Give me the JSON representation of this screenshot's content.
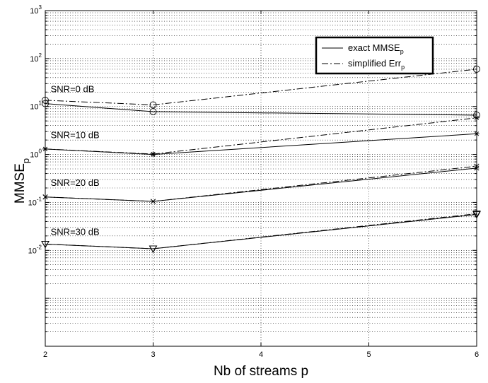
{
  "chart_data": {
    "type": "line",
    "x": [
      2,
      3,
      6
    ],
    "xlabel": "Nb of streams p",
    "ylabel_main": "MMSE",
    "ylabel_sub": "p",
    "xlim": [
      2,
      6
    ],
    "ylim": [
      0.0001,
      1000
    ],
    "yscale": "log",
    "x_ticks": [
      "2",
      "3",
      "4",
      "5",
      "6"
    ],
    "y_ticks": [
      {
        "base": "10",
        "exp": "3",
        "value": 1000
      },
      {
        "base": "10",
        "exp": "2",
        "value": 100
      },
      {
        "base": "10",
        "exp": "1",
        "value": 10
      },
      {
        "base": "10",
        "exp": "0",
        "value": 1
      },
      {
        "base": "10",
        "exp": "-1",
        "value": 0.1
      },
      {
        "base": "10",
        "exp": "-2",
        "value": 0.01
      }
    ],
    "grid": true,
    "legend": {
      "position": "top-right",
      "entries": [
        {
          "main": "exact MMSE",
          "sub": "p",
          "style": "solid"
        },
        {
          "main": "simplified Err",
          "sub": "p",
          "style": "dashdot"
        }
      ]
    },
    "annotations": [
      {
        "text": "SNR=0 dB",
        "x": 2.05,
        "y": 20
      },
      {
        "text": "SNR=10 dB",
        "x": 2.05,
        "y": 2.2
      },
      {
        "text": "SNR=20 dB",
        "x": 2.05,
        "y": 0.22
      },
      {
        "text": "SNR=30 dB",
        "x": 2.05,
        "y": 0.021
      }
    ],
    "series": [
      {
        "group": "SNR=0 dB",
        "kind": "exact",
        "values": [
          11.5,
          7.8,
          6.6
        ],
        "marker": "circle",
        "marker_idx": [
          0,
          1,
          2
        ]
      },
      {
        "group": "SNR=0 dB",
        "kind": "simplified",
        "values": [
          13.5,
          10.8,
          60
        ],
        "marker": "circle",
        "marker_idx": [
          0,
          1,
          2
        ]
      },
      {
        "group": "SNR=10 dB",
        "kind": "exact",
        "values": [
          1.3,
          1.0,
          2.7
        ],
        "marker": "star",
        "marker_idx": [
          0,
          1,
          2
        ]
      },
      {
        "group": "SNR=10 dB",
        "kind": "simplified",
        "values": [
          1.3,
          1.02,
          5.8
        ],
        "marker": "star",
        "marker_idx": [
          0,
          1,
          2
        ]
      },
      {
        "group": "SNR=20 dB",
        "kind": "exact",
        "values": [
          0.13,
          0.105,
          0.52
        ],
        "marker": "x",
        "marker_idx": [
          0,
          1,
          2
        ]
      },
      {
        "group": "SNR=20 dB",
        "kind": "simplified",
        "values": [
          0.13,
          0.105,
          0.57
        ],
        "marker": "x",
        "marker_idx": [
          0,
          1,
          2
        ]
      },
      {
        "group": "SNR=30 dB",
        "kind": "exact",
        "values": [
          0.0135,
          0.0108,
          0.056
        ],
        "marker": "triangle",
        "marker_idx": [
          0,
          1,
          2
        ]
      },
      {
        "group": "SNR=30 dB",
        "kind": "simplified",
        "values": [
          0.0135,
          0.0108,
          0.058
        ],
        "marker": "triangle",
        "marker_idx": [
          0,
          1,
          2
        ]
      }
    ]
  }
}
